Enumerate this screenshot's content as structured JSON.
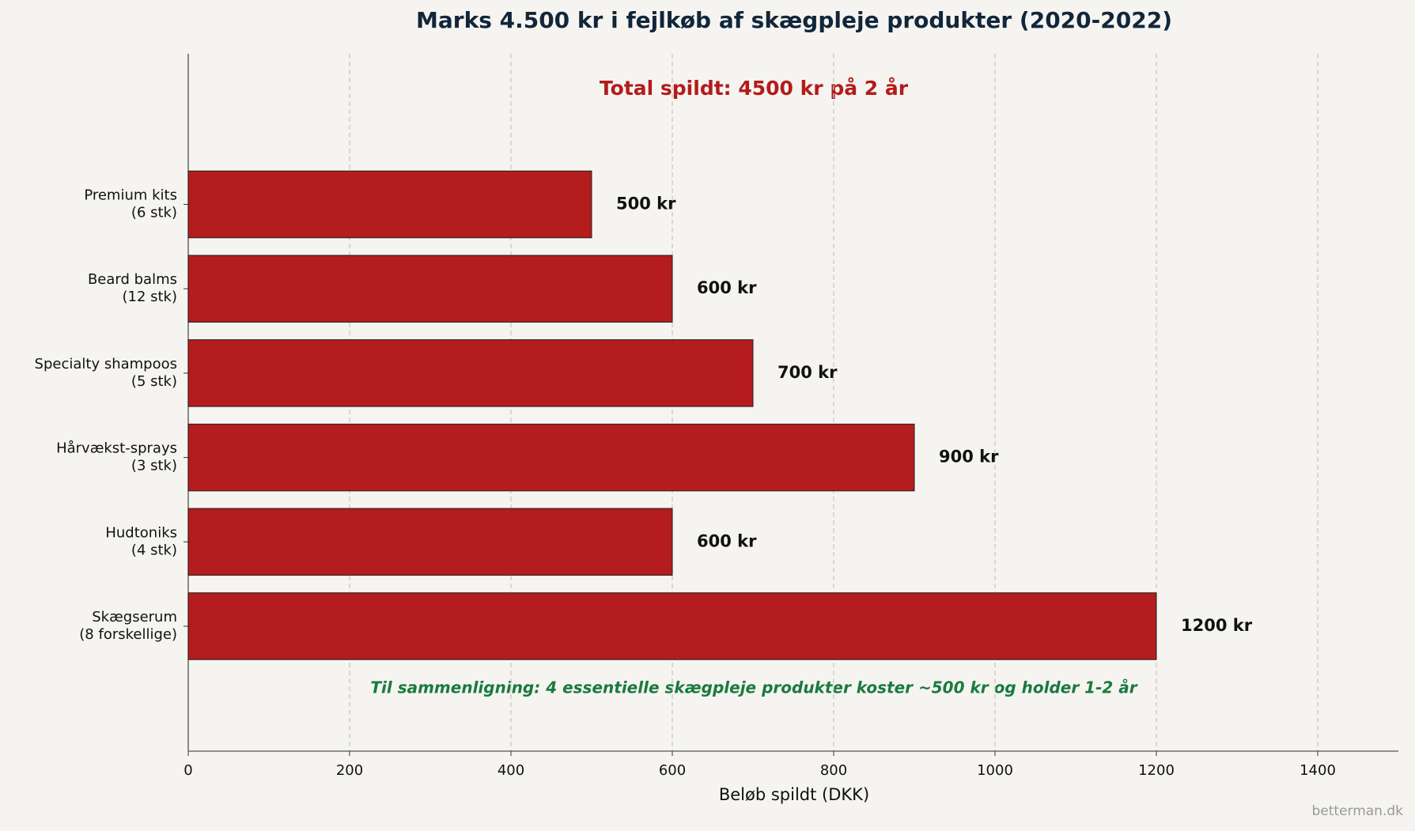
{
  "chart_data": {
    "type": "bar",
    "orientation": "horizontal",
    "title": "Marks 4.500 kr i fejlkøb af skægpleje produkter (2020-2022)",
    "annotation": "Total spildt: 4500 kr på 2 år",
    "note": "Til sammenligning: 4 essentielle skægpleje produkter koster ~500 kr og holder 1-2 år",
    "watermark": "betterman.dk",
    "x_label": "Beløb spildt (DKK)",
    "categories": [
      "Premium kits\n(6 stk)",
      "Beard balms\n(12 stk)",
      "Specialty shampoos\n(5 stk)",
      "Hårvækst-sprays\n(3 stk)",
      "Hudtoniks\n(4 stk)",
      "Skægserum\n(8 forskellige)"
    ],
    "values": [
      500,
      600,
      700,
      900,
      600,
      1200
    ],
    "value_labels": [
      "500 kr",
      "600 kr",
      "700 kr",
      "900 kr",
      "600 kr",
      "1200 kr"
    ],
    "color": "#b41c1e",
    "xlim": [
      0,
      1500
    ],
    "xticks": [
      0,
      200,
      400,
      600,
      800,
      1000,
      1200,
      1400
    ],
    "grid": true
  }
}
